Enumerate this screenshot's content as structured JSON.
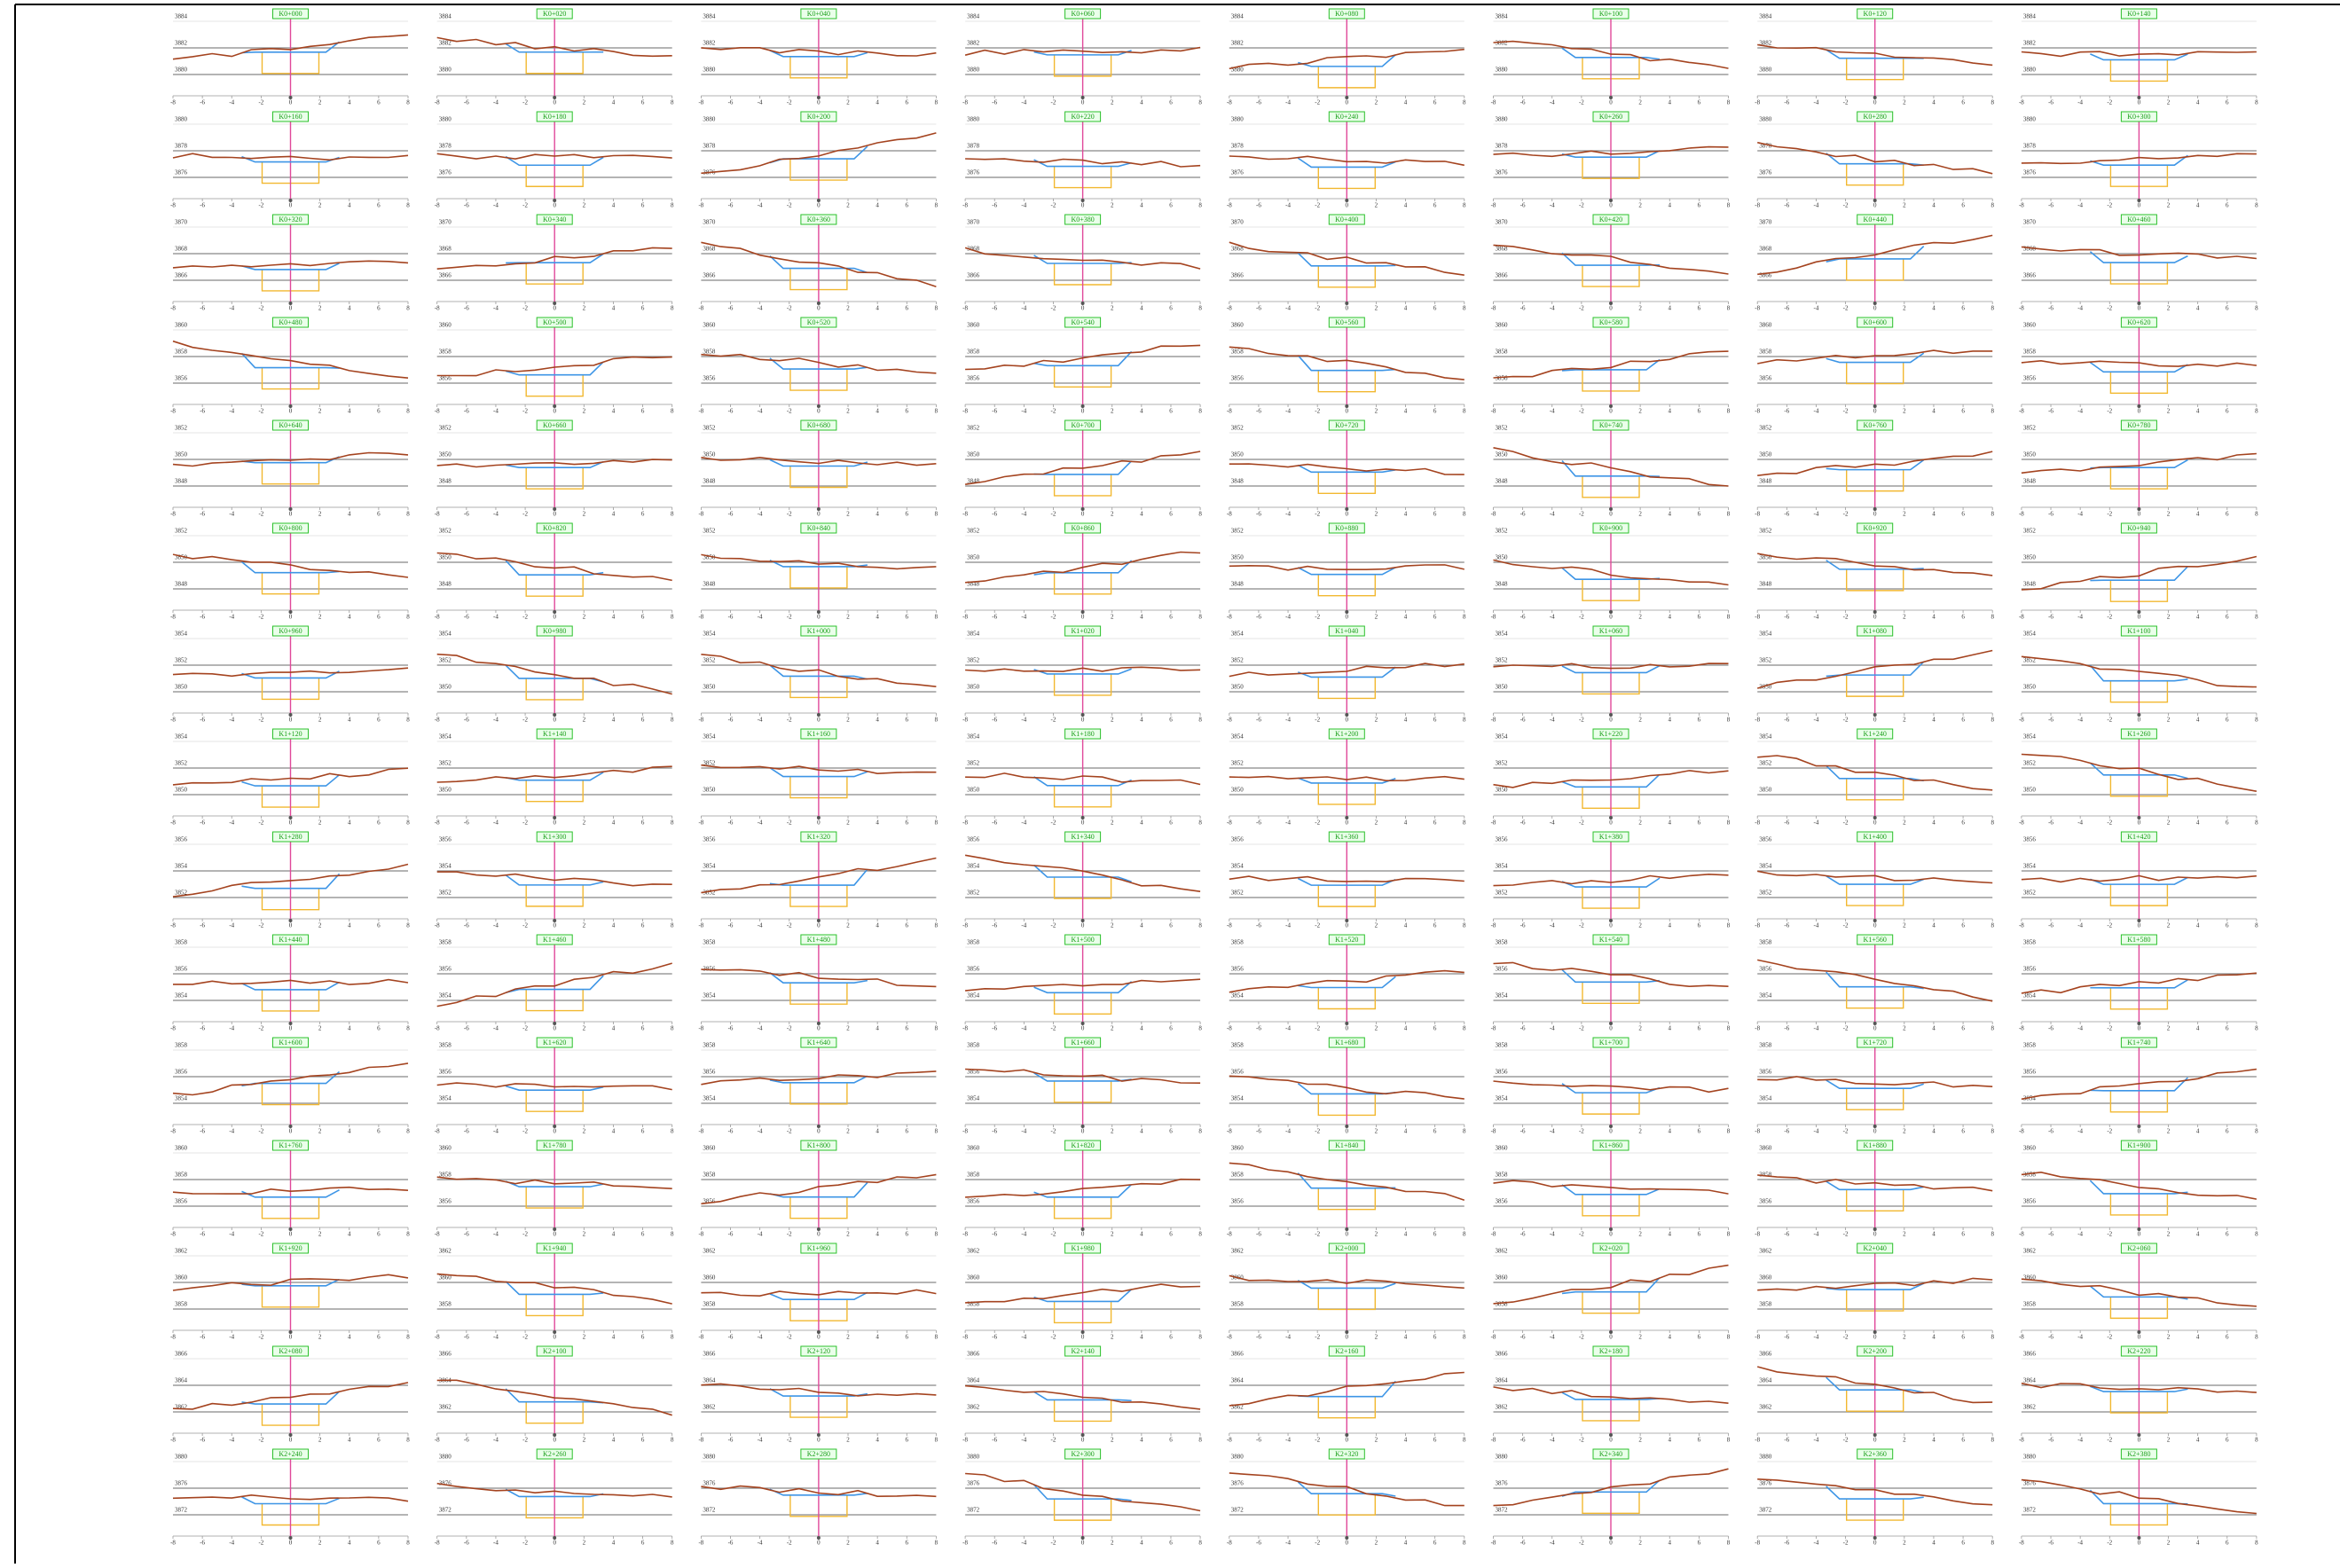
{
  "x_ticks": [
    "-8",
    "-6",
    "-4",
    "-2",
    "0",
    "2",
    "4",
    "6",
    "8"
  ],
  "sections": [
    {
      "station": "K0+000",
      "elev": [
        "3884",
        "3882",
        "3880"
      ]
    },
    {
      "station": "K0+020",
      "elev": [
        "3884",
        "3882",
        "3880"
      ]
    },
    {
      "station": "K0+040",
      "elev": [
        "3884",
        "3882",
        "3880"
      ]
    },
    {
      "station": "K0+060",
      "elev": [
        "3884",
        "3882",
        "3880"
      ]
    },
    {
      "station": "K0+080",
      "elev": [
        "3884",
        "3882",
        "3880"
      ]
    },
    {
      "station": "K0+100",
      "elev": [
        "3884",
        "3882",
        "3880"
      ]
    },
    {
      "station": "K0+120",
      "elev": [
        "3884",
        "3882",
        "3880"
      ]
    },
    {
      "station": "K0+140",
      "elev": [
        "3884",
        "3882",
        "3880"
      ]
    },
    {
      "station": "K0+160",
      "elev": [
        "3880",
        "3878",
        "3876"
      ]
    },
    {
      "station": "K0+180",
      "elev": [
        "3880",
        "3878",
        "3876"
      ]
    },
    {
      "station": "K0+200",
      "elev": [
        "3880",
        "3878",
        "3876"
      ]
    },
    {
      "station": "K0+220",
      "elev": [
        "3880",
        "3878",
        "3876"
      ]
    },
    {
      "station": "K0+240",
      "elev": [
        "3880",
        "3878",
        "3876"
      ]
    },
    {
      "station": "K0+260",
      "elev": [
        "3880",
        "3878",
        "3876"
      ]
    },
    {
      "station": "K0+280",
      "elev": [
        "3880",
        "3878",
        "3876"
      ]
    },
    {
      "station": "K0+300",
      "elev": [
        "3880",
        "3878",
        "3876"
      ]
    },
    {
      "station": "K0+320",
      "elev": [
        "3870",
        "3868",
        "3866"
      ]
    },
    {
      "station": "K0+340",
      "elev": [
        "3870",
        "3868",
        "3866"
      ]
    },
    {
      "station": "K0+360",
      "elev": [
        "3870",
        "3868",
        "3866"
      ]
    },
    {
      "station": "K0+380",
      "elev": [
        "3870",
        "3868",
        "3866"
      ]
    },
    {
      "station": "K0+400",
      "elev": [
        "3870",
        "3868",
        "3866"
      ]
    },
    {
      "station": "K0+420",
      "elev": [
        "3870",
        "3868",
        "3866"
      ]
    },
    {
      "station": "K0+440",
      "elev": [
        "3870",
        "3868",
        "3866"
      ]
    },
    {
      "station": "K0+460",
      "elev": [
        "3870",
        "3868",
        "3866"
      ]
    },
    {
      "station": "K0+480",
      "elev": [
        "3860",
        "3858",
        "3856"
      ]
    },
    {
      "station": "K0+500",
      "elev": [
        "3860",
        "3858",
        "3856"
      ]
    },
    {
      "station": "K0+520",
      "elev": [
        "3860",
        "3858",
        "3856"
      ]
    },
    {
      "station": "K0+540",
      "elev": [
        "3860",
        "3858",
        "3856"
      ]
    },
    {
      "station": "K0+560",
      "elev": [
        "3860",
        "3858",
        "3856"
      ]
    },
    {
      "station": "K0+580",
      "elev": [
        "3860",
        "3858",
        "3856"
      ]
    },
    {
      "station": "K0+600",
      "elev": [
        "3860",
        "3858",
        "3856"
      ]
    },
    {
      "station": "K0+620",
      "elev": [
        "3860",
        "3858",
        "3856"
      ]
    },
    {
      "station": "K0+640",
      "elev": [
        "3852",
        "3850",
        "3848"
      ]
    },
    {
      "station": "K0+660",
      "elev": [
        "3852",
        "3850",
        "3848"
      ]
    },
    {
      "station": "K0+680",
      "elev": [
        "3852",
        "3850",
        "3848"
      ]
    },
    {
      "station": "K0+700",
      "elev": [
        "3852",
        "3850",
        "3848"
      ]
    },
    {
      "station": "K0+720",
      "elev": [
        "3852",
        "3850",
        "3848"
      ]
    },
    {
      "station": "K0+740",
      "elev": [
        "3852",
        "3850",
        "3848"
      ]
    },
    {
      "station": "K0+760",
      "elev": [
        "3852",
        "3850",
        "3848"
      ]
    },
    {
      "station": "K0+780",
      "elev": [
        "3852",
        "3850",
        "3848"
      ]
    },
    {
      "station": "K0+800",
      "elev": [
        "3852",
        "3850",
        "3848"
      ]
    },
    {
      "station": "K0+820",
      "elev": [
        "3852",
        "3850",
        "3848"
      ]
    },
    {
      "station": "K0+840",
      "elev": [
        "3852",
        "3850",
        "3848"
      ]
    },
    {
      "station": "K0+860",
      "elev": [
        "3852",
        "3850",
        "3848"
      ]
    },
    {
      "station": "K0+880",
      "elev": [
        "3852",
        "3850",
        "3848"
      ]
    },
    {
      "station": "K0+900",
      "elev": [
        "3852",
        "3850",
        "3848"
      ]
    },
    {
      "station": "K0+920",
      "elev": [
        "3852",
        "3850",
        "3848"
      ]
    },
    {
      "station": "K0+940",
      "elev": [
        "3852",
        "3850",
        "3848"
      ]
    },
    {
      "station": "K0+960",
      "elev": [
        "3854",
        "3852",
        "3850"
      ]
    },
    {
      "station": "K0+980",
      "elev": [
        "3854",
        "3852",
        "3850"
      ]
    },
    {
      "station": "K1+000",
      "elev": [
        "3854",
        "3852",
        "3850"
      ]
    },
    {
      "station": "K1+020",
      "elev": [
        "3854",
        "3852",
        "3850"
      ]
    },
    {
      "station": "K1+040",
      "elev": [
        "3854",
        "3852",
        "3850"
      ]
    },
    {
      "station": "K1+060",
      "elev": [
        "3854",
        "3852",
        "3850"
      ]
    },
    {
      "station": "K1+080",
      "elev": [
        "3854",
        "3852",
        "3850"
      ]
    },
    {
      "station": "K1+100",
      "elev": [
        "3854",
        "3852",
        "3850"
      ]
    },
    {
      "station": "K1+120",
      "elev": [
        "3854",
        "3852",
        "3850"
      ]
    },
    {
      "station": "K1+140",
      "elev": [
        "3854",
        "3852",
        "3850"
      ]
    },
    {
      "station": "K1+160",
      "elev": [
        "3854",
        "3852",
        "3850"
      ]
    },
    {
      "station": "K1+180",
      "elev": [
        "3854",
        "3852",
        "3850"
      ]
    },
    {
      "station": "K1+200",
      "elev": [
        "3854",
        "3852",
        "3850"
      ]
    },
    {
      "station": "K1+220",
      "elev": [
        "3854",
        "3852",
        "3850"
      ]
    },
    {
      "station": "K1+240",
      "elev": [
        "3854",
        "3852",
        "3850"
      ]
    },
    {
      "station": "K1+260",
      "elev": [
        "3854",
        "3852",
        "3850"
      ]
    },
    {
      "station": "K1+280",
      "elev": [
        "3856",
        "3854",
        "3852"
      ]
    },
    {
      "station": "K1+300",
      "elev": [
        "3856",
        "3854",
        "3852"
      ]
    },
    {
      "station": "K1+320",
      "elev": [
        "3856",
        "3854",
        "3852"
      ]
    },
    {
      "station": "K1+340",
      "elev": [
        "3856",
        "3854",
        "3852"
      ]
    },
    {
      "station": "K1+360",
      "elev": [
        "3856",
        "3854",
        "3852"
      ]
    },
    {
      "station": "K1+380",
      "elev": [
        "3856",
        "3854",
        "3852"
      ]
    },
    {
      "station": "K1+400",
      "elev": [
        "3856",
        "3854",
        "3852"
      ]
    },
    {
      "station": "K1+420",
      "elev": [
        "3856",
        "3854",
        "3852"
      ]
    },
    {
      "station": "K1+440",
      "elev": [
        "3858",
        "3856",
        "3854"
      ]
    },
    {
      "station": "K1+460",
      "elev": [
        "3858",
        "3856",
        "3854"
      ]
    },
    {
      "station": "K1+480",
      "elev": [
        "3858",
        "3856",
        "3854"
      ]
    },
    {
      "station": "K1+500",
      "elev": [
        "3858",
        "3856",
        "3854"
      ]
    },
    {
      "station": "K1+520",
      "elev": [
        "3858",
        "3856",
        "3854"
      ]
    },
    {
      "station": "K1+540",
      "elev": [
        "3858",
        "3856",
        "3854"
      ]
    },
    {
      "station": "K1+560",
      "elev": [
        "3858",
        "3856",
        "3854"
      ]
    },
    {
      "station": "K1+580",
      "elev": [
        "3858",
        "3856",
        "3854"
      ]
    },
    {
      "station": "K1+600",
      "elev": [
        "3858",
        "3856",
        "3854"
      ]
    },
    {
      "station": "K1+620",
      "elev": [
        "3858",
        "3856",
        "3854"
      ]
    },
    {
      "station": "K1+640",
      "elev": [
        "3858",
        "3856",
        "3854"
      ]
    },
    {
      "station": "K1+660",
      "elev": [
        "3858",
        "3856",
        "3854"
      ]
    },
    {
      "station": "K1+680",
      "elev": [
        "3858",
        "3856",
        "3854"
      ]
    },
    {
      "station": "K1+700",
      "elev": [
        "3858",
        "3856",
        "3854"
      ]
    },
    {
      "station": "K1+720",
      "elev": [
        "3858",
        "3856",
        "3854"
      ]
    },
    {
      "station": "K1+740",
      "elev": [
        "3858",
        "3856",
        "3854"
      ]
    },
    {
      "station": "K1+760",
      "elev": [
        "3860",
        "3858",
        "3856"
      ]
    },
    {
      "station": "K1+780",
      "elev": [
        "3860",
        "3858",
        "3856"
      ]
    },
    {
      "station": "K1+800",
      "elev": [
        "3860",
        "3858",
        "3856"
      ]
    },
    {
      "station": "K1+820",
      "elev": [
        "3860",
        "3858",
        "3856"
      ]
    },
    {
      "station": "K1+840",
      "elev": [
        "3860",
        "3858",
        "3856"
      ]
    },
    {
      "station": "K1+860",
      "elev": [
        "3860",
        "3858",
        "3856"
      ]
    },
    {
      "station": "K1+880",
      "elev": [
        "3860",
        "3858",
        "3856"
      ]
    },
    {
      "station": "K1+900",
      "elev": [
        "3860",
        "3858",
        "3856"
      ]
    },
    {
      "station": "K1+920",
      "elev": [
        "3862",
        "3860",
        "3858"
      ]
    },
    {
      "station": "K1+940",
      "elev": [
        "3862",
        "3860",
        "3858"
      ]
    },
    {
      "station": "K1+960",
      "elev": [
        "3862",
        "3860",
        "3858"
      ]
    },
    {
      "station": "K1+980",
      "elev": [
        "3862",
        "3860",
        "3858"
      ]
    },
    {
      "station": "K2+000",
      "elev": [
        "3862",
        "3860",
        "3858"
      ]
    },
    {
      "station": "K2+020",
      "elev": [
        "3862",
        "3860",
        "3858"
      ]
    },
    {
      "station": "K2+040",
      "elev": [
        "3862",
        "3860",
        "3858"
      ]
    },
    {
      "station": "K2+060",
      "elev": [
        "3862",
        "3860",
        "3858"
      ]
    },
    {
      "station": "K2+080",
      "elev": [
        "3866",
        "3864",
        "3862"
      ]
    },
    {
      "station": "K2+100",
      "elev": [
        "3866",
        "3864",
        "3862"
      ]
    },
    {
      "station": "K2+120",
      "elev": [
        "3866",
        "3864",
        "3862"
      ]
    },
    {
      "station": "K2+140",
      "elev": [
        "3866",
        "3864",
        "3862"
      ]
    },
    {
      "station": "K2+160",
      "elev": [
        "3866",
        "3864",
        "3862"
      ]
    },
    {
      "station": "K2+180",
      "elev": [
        "3866",
        "3864",
        "3862"
      ]
    },
    {
      "station": "K2+200",
      "elev": [
        "3866",
        "3864",
        "3862"
      ]
    },
    {
      "station": "K2+220",
      "elev": [
        "3866",
        "3864",
        "3862"
      ]
    },
    {
      "station": "K2+240",
      "elev": [
        "3880",
        "3876",
        "3872"
      ]
    },
    {
      "station": "K2+260",
      "elev": [
        "3880",
        "3876",
        "3872"
      ]
    },
    {
      "station": "K2+280",
      "elev": [
        "3880",
        "3876",
        "3872"
      ]
    },
    {
      "station": "K2+300",
      "elev": [
        "3880",
        "3876",
        "3872"
      ]
    },
    {
      "station": "K2+320",
      "elev": [
        "3880",
        "3876",
        "3872"
      ]
    },
    {
      "station": "K2+340",
      "elev": [
        "3880",
        "3876",
        "3872"
      ]
    },
    {
      "station": "K2+360",
      "elev": [
        "3880",
        "3876",
        "3872"
      ]
    },
    {
      "station": "K2+380",
      "elev": [
        "3880",
        "3876",
        "3872"
      ]
    }
  ]
}
